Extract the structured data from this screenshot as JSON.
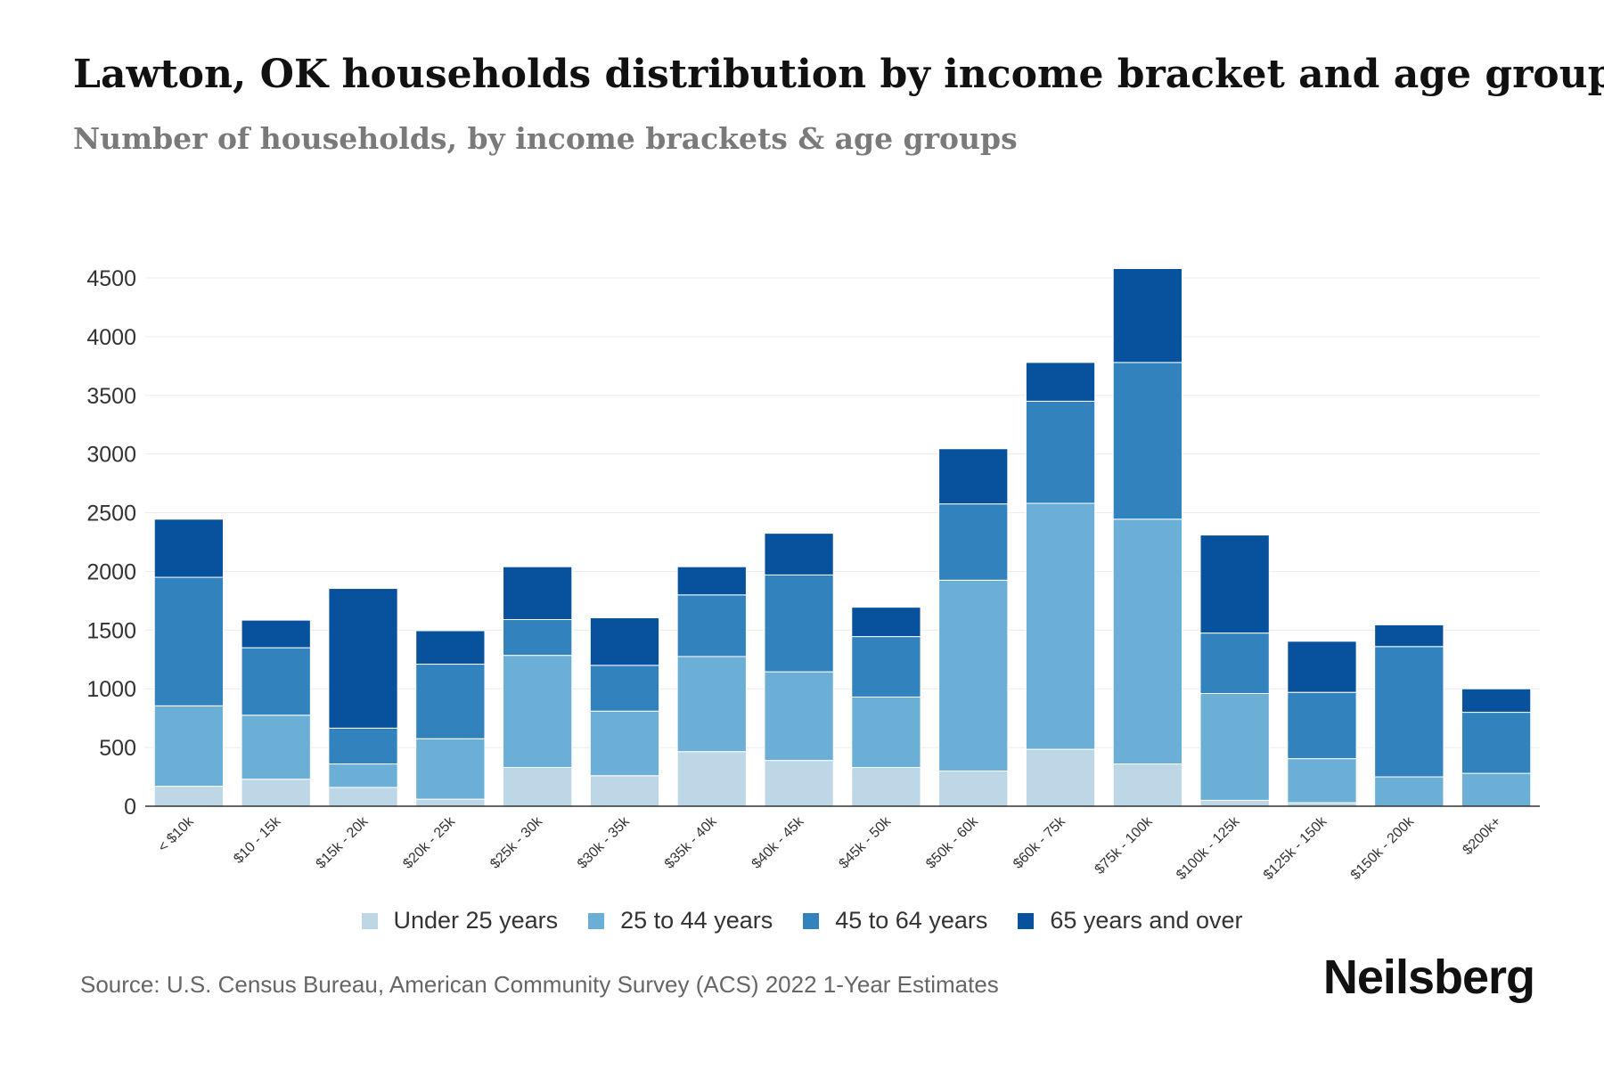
{
  "chart_data": {
    "type": "bar",
    "stacked": true,
    "title": "Lawton, OK households distribution by income bracket and age group",
    "subtitle": "Number of households, by income brackets & age groups",
    "xlabel": "",
    "ylabel": "",
    "ylim": [
      0,
      4500
    ],
    "yticks": [
      0,
      500,
      1000,
      1500,
      2000,
      2500,
      3000,
      3500,
      4000,
      4500
    ],
    "grid": true,
    "legend_position": "bottom",
    "categories": [
      "< $10k",
      "$10 - 15k",
      "$15k - 20k",
      "$20k - 25k",
      "$25k - 30k",
      "$30k - 35k",
      "$35k - 40k",
      "$40k - 45k",
      "$45k - 50k",
      "$50k - 60k",
      "$60k - 75k",
      "$75k - 100k",
      "$100k - 125k",
      "$125k - 150k",
      "$150k - 200k",
      "$200k+"
    ],
    "series": [
      {
        "name": "Under 25 years",
        "color": "#bdd7e7",
        "values": [
          170,
          230,
          160,
          60,
          330,
          260,
          465,
          390,
          330,
          300,
          485,
          360,
          50,
          30,
          0,
          0
        ]
      },
      {
        "name": "25 to 44 years",
        "color": "#6baed6",
        "values": [
          685,
          545,
          200,
          515,
          955,
          550,
          810,
          755,
          600,
          1625,
          2095,
          2085,
          910,
          375,
          250,
          280
        ]
      },
      {
        "name": "45 to 64 years",
        "color": "#3182bd",
        "values": [
          1095,
          575,
          305,
          635,
          305,
          390,
          525,
          825,
          515,
          650,
          870,
          1335,
          515,
          565,
          1110,
          520
        ]
      },
      {
        "name": "65 years and over",
        "color": "#08519c",
        "values": [
          495,
          235,
          1190,
          285,
          450,
          405,
          240,
          355,
          250,
          470,
          330,
          800,
          835,
          435,
          185,
          200
        ]
      }
    ]
  },
  "source": "Source: U.S. Census Bureau, American Community Survey (ACS) 2022 1-Year Estimates",
  "brand": "Neilsberg"
}
